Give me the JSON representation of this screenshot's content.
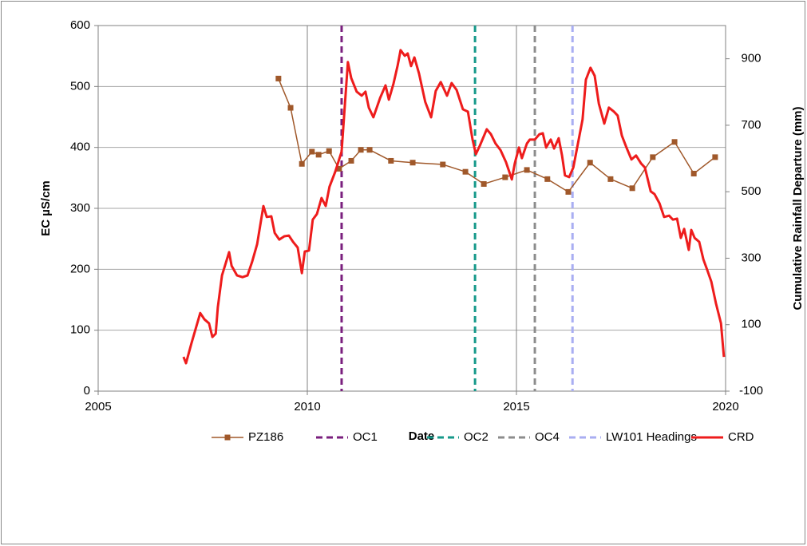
{
  "chart_data": {
    "type": "line",
    "x_label": "Date",
    "y_label": "EC µS/cm",
    "y2_label": "Cumulative Rainfall  Departure (mm)",
    "xlim": [
      2005,
      2020
    ],
    "xticks": [
      2005,
      2010,
      2015,
      2020
    ],
    "ylim": [
      0,
      600
    ],
    "yticks": [
      0,
      100,
      200,
      300,
      400,
      500,
      600
    ],
    "y2lim": [
      -100,
      1000
    ],
    "y2ticks": [
      -100,
      100,
      300,
      500,
      700,
      900
    ],
    "grid": true,
    "legend": "bottom",
    "series": [
      {
        "name": "PZ186",
        "color": "#a0582a",
        "marker": "square",
        "x": [
          2009.31,
          2009.6,
          2009.87,
          2010.11,
          2010.27,
          2010.52,
          2010.76,
          2011.05,
          2011.28,
          2011.49,
          2012.0,
          2012.52,
          2013.24,
          2013.78,
          2014.22,
          2014.73,
          2015.25,
          2015.74,
          2016.24,
          2016.76,
          2017.25,
          2017.77,
          2018.26,
          2018.78,
          2019.24,
          2019.75
        ],
        "values": [
          513,
          465,
          373,
          393,
          388,
          394,
          365,
          378,
          396,
          396,
          378,
          375,
          372,
          360,
          340,
          351,
          363,
          348,
          327,
          375,
          348,
          333,
          384,
          409,
          357,
          384
        ]
      },
      {
        "name": "CRD",
        "color": "#ee1c1c",
        "axis": "y2",
        "x": [
          2007.04,
          2007.1,
          2007.23,
          2007.44,
          2007.54,
          2007.65,
          2007.73,
          2007.81,
          2007.86,
          2007.96,
          2008.13,
          2008.19,
          2008.32,
          2008.45,
          2008.57,
          2008.68,
          2008.8,
          2008.95,
          2009.03,
          2009.14,
          2009.22,
          2009.33,
          2009.45,
          2009.56,
          2009.66,
          2009.77,
          2009.87,
          2009.94,
          2010.04,
          2010.13,
          2010.23,
          2010.34,
          2010.44,
          2010.53,
          2010.67,
          2010.82,
          2010.9,
          2010.97,
          2011.05,
          2011.18,
          2011.3,
          2011.39,
          2011.47,
          2011.58,
          2011.74,
          2011.87,
          2011.95,
          2012.06,
          2012.16,
          2012.23,
          2012.33,
          2012.4,
          2012.48,
          2012.56,
          2012.67,
          2012.82,
          2012.96,
          2013.07,
          2013.19,
          2013.34,
          2013.45,
          2013.57,
          2013.72,
          2013.84,
          2013.95,
          2014.03,
          2014.12,
          2014.29,
          2014.39,
          2014.5,
          2014.62,
          2014.75,
          2014.89,
          2014.96,
          2015.06,
          2015.13,
          2015.25,
          2015.32,
          2015.44,
          2015.55,
          2015.63,
          2015.71,
          2015.82,
          2015.9,
          2016.01,
          2016.09,
          2016.16,
          2016.26,
          2016.36,
          2016.47,
          2016.58,
          2016.66,
          2016.77,
          2016.87,
          2016.97,
          2017.1,
          2017.21,
          2017.33,
          2017.42,
          2017.52,
          2017.63,
          2017.75,
          2017.86,
          2017.98,
          2018.07,
          2018.21,
          2018.3,
          2018.42,
          2018.53,
          2018.65,
          2018.74,
          2018.84,
          2018.93,
          2019.01,
          2019.12,
          2019.18,
          2019.26,
          2019.37,
          2019.47,
          2019.56,
          2019.66,
          2019.77,
          2019.89,
          2019.96
        ],
        "values": [
          3,
          -16,
          44,
          135,
          116,
          104,
          63,
          73,
          152,
          248,
          318,
          277,
          248,
          243,
          248,
          289,
          342,
          457,
          424,
          426,
          376,
          356,
          366,
          368,
          349,
          332,
          255,
          320,
          323,
          416,
          433,
          481,
          457,
          515,
          561,
          621,
          765,
          890,
          842,
          801,
          789,
          801,
          753,
          724,
          782,
          820,
          777,
          825,
          880,
          926,
          909,
          916,
          878,
          904,
          856,
          770,
          724,
          803,
          830,
          789,
          827,
          806,
          748,
          741,
          657,
          613,
          637,
          688,
          673,
          645,
          625,
          589,
          537,
          585,
          633,
          601,
          645,
          657,
          657,
          673,
          676,
          633,
          657,
          630,
          661,
          609,
          549,
          544,
          573,
          645,
          717,
          837,
          873,
          849,
          765,
          705,
          753,
          741,
          729,
          669,
          633,
          597,
          609,
          585,
          573,
          501,
          493,
          465,
          424,
          428,
          416,
          419,
          361,
          388,
          325,
          385,
          361,
          349,
          296,
          265,
          229,
          164,
          104,
          3
        ]
      }
    ],
    "vlines": [
      {
        "name": "OC1",
        "color": "#7a1f7e",
        "x": 2010.82
      },
      {
        "name": "OC2",
        "color": "#16998a",
        "x": 2014.01
      },
      {
        "name": "OC4",
        "color": "#8c8c8c",
        "x": 2015.44
      },
      {
        "name": "LW101 Headings",
        "color": "#a9aef2",
        "x": 2016.34
      }
    ]
  }
}
